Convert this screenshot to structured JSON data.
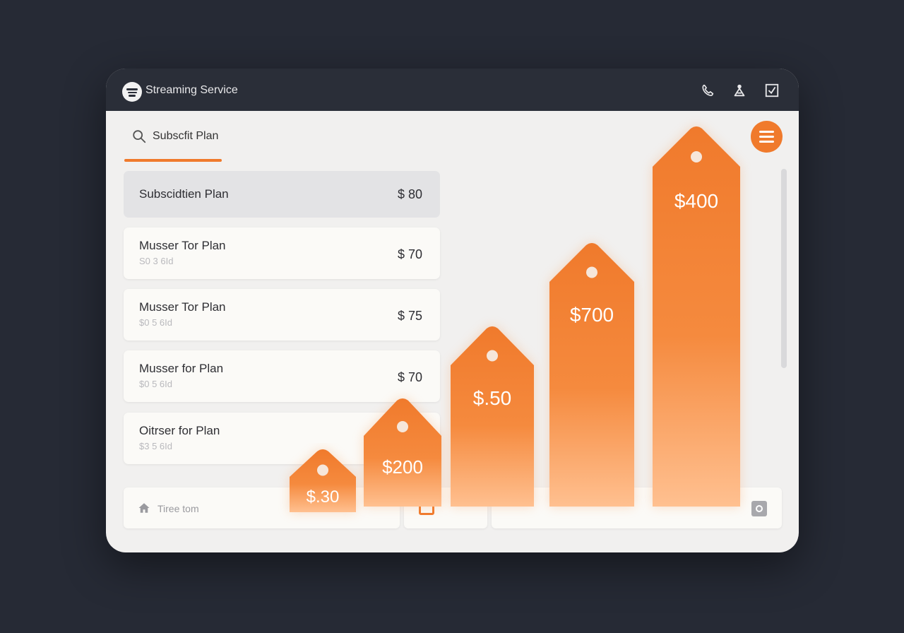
{
  "app": {
    "title": "Streaming Service",
    "header_icons": [
      "phone-icon",
      "person-icon",
      "checkbox-icon"
    ]
  },
  "search": {
    "text": "Subscfit Plan"
  },
  "plans": [
    {
      "name": "Subscidtien Plan",
      "sub": "",
      "price": "$ 80",
      "selected": true
    },
    {
      "name": "Musser Tor Plan",
      "sub": "S0 3 6Id",
      "price": "$ 70",
      "selected": false
    },
    {
      "name": "Musser Tor Plan",
      "sub": "$0 5 6Id",
      "price": "$ 75",
      "selected": false
    },
    {
      "name": "Musser for Plan",
      "sub": "$0 5 6Id",
      "price": "$ 70",
      "selected": false
    },
    {
      "name": "Oitrser for Plan",
      "sub": "$3 5 6Id",
      "price": "",
      "selected": false
    }
  ],
  "bottom_bar": {
    "home_label": "Tiree tom"
  },
  "chart_data": {
    "type": "bar",
    "values": [
      30,
      200,
      50,
      700,
      400
    ],
    "labels": [
      "$.30",
      "$200",
      "$.50",
      "$700",
      "$400"
    ]
  },
  "colors": {
    "accent": "#f07a2c",
    "window_bg": "#f1f0ef",
    "titlebar": "#2a2e38",
    "page_bg": "#262a35"
  }
}
